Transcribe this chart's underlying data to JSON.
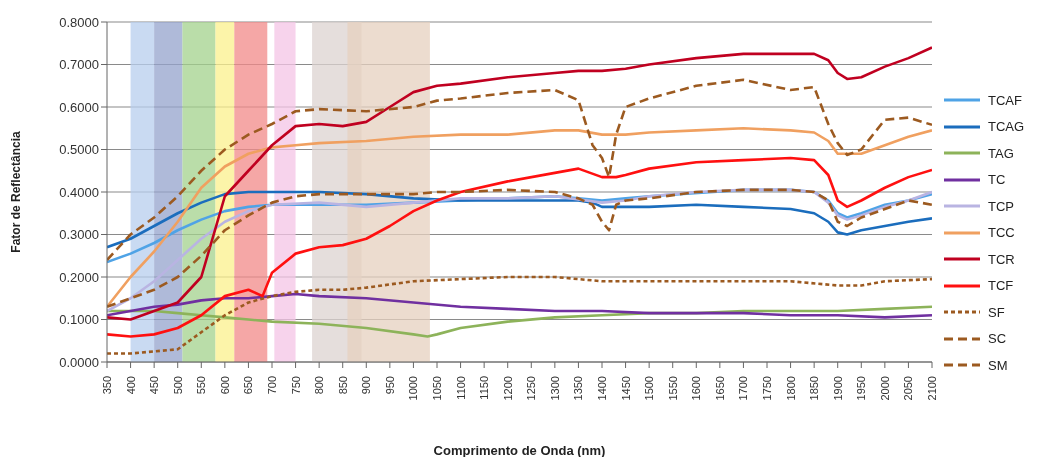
{
  "chart_data": {
    "type": "line",
    "xlabel": "Comprimento de Onda (nm)",
    "ylabel": "Fator de Reflectância",
    "xlim": [
      350,
      2100
    ],
    "xticks": [
      350,
      400,
      450,
      500,
      550,
      600,
      650,
      700,
      750,
      800,
      850,
      900,
      950,
      1000,
      1050,
      1100,
      1150,
      1200,
      1250,
      1300,
      1350,
      1400,
      1450,
      1500,
      1550,
      1600,
      1650,
      1700,
      1750,
      1800,
      1850,
      1900,
      1950,
      2000,
      2050,
      2100
    ],
    "ylim": [
      0,
      0.8
    ],
    "yticks": [
      {
        "value": 0,
        "label": "0.0000"
      },
      {
        "value": 0.1,
        "label": "0.1000"
      },
      {
        "value": 0.2,
        "label": "0.2000"
      },
      {
        "value": 0.3,
        "label": "0.3000"
      },
      {
        "value": 0.4,
        "label": "0.4000"
      },
      {
        "value": 0.5,
        "label": "0.5000"
      },
      {
        "value": 0.6,
        "label": "0.6000"
      },
      {
        "value": 0.7,
        "label": "0.7000"
      },
      {
        "value": 0.8,
        "label": "0.8000"
      }
    ],
    "grid": "y",
    "legend": "right",
    "marker": "none",
    "bands": [
      {
        "axis": "x",
        "from": 400,
        "to": 450,
        "color": "#b7cdee"
      },
      {
        "axis": "x",
        "from": 450,
        "to": 510,
        "color": "#94a3cc"
      },
      {
        "axis": "x",
        "from": 510,
        "to": 580,
        "color": "#a3d18c"
      },
      {
        "axis": "x",
        "from": 580,
        "to": 620,
        "color": "#fbf08c"
      },
      {
        "axis": "x",
        "from": 620,
        "to": 690,
        "color": "#f28a88"
      },
      {
        "axis": "x",
        "from": 705,
        "to": 750,
        "color": "#f4c4e6"
      },
      {
        "axis": "x",
        "from": 785,
        "to": 890,
        "color": "#dcd3d0"
      },
      {
        "axis": "x",
        "from": 860,
        "to": 1035,
        "color": "#e6d0bf"
      }
    ],
    "series": [
      {
        "name": "TCAF",
        "color": "#4fa3e6",
        "line_style": "solid",
        "x": [
          350,
          400,
          450,
          500,
          550,
          600,
          650,
          700,
          800,
          900,
          1000,
          1100,
          1200,
          1300,
          1350,
          1400,
          1450,
          1500,
          1700,
          1800,
          1850,
          1880,
          1900,
          1920,
          1950,
          2000,
          2050,
          2100
        ],
        "values": [
          0.235,
          0.255,
          0.28,
          0.31,
          0.335,
          0.355,
          0.365,
          0.37,
          0.37,
          0.37,
          0.375,
          0.38,
          0.385,
          0.39,
          0.385,
          0.38,
          0.385,
          0.39,
          0.405,
          0.405,
          0.4,
          0.38,
          0.35,
          0.34,
          0.35,
          0.37,
          0.38,
          0.395
        ]
      },
      {
        "name": "TCAG",
        "color": "#1b6dbd",
        "line_style": "solid",
        "x": [
          350,
          400,
          450,
          500,
          550,
          600,
          650,
          700,
          800,
          900,
          1000,
          1100,
          1200,
          1300,
          1350,
          1380,
          1400,
          1450,
          1500,
          1600,
          1700,
          1800,
          1850,
          1880,
          1900,
          1920,
          1950,
          2000,
          2050,
          2100
        ],
        "values": [
          0.27,
          0.29,
          0.32,
          0.35,
          0.375,
          0.395,
          0.4,
          0.4,
          0.4,
          0.395,
          0.385,
          0.38,
          0.38,
          0.38,
          0.38,
          0.375,
          0.365,
          0.365,
          0.365,
          0.37,
          0.365,
          0.36,
          0.35,
          0.33,
          0.305,
          0.3,
          0.31,
          0.32,
          0.33,
          0.338
        ]
      },
      {
        "name": "TAG",
        "color": "#8db35a",
        "line_style": "solid",
        "x": [
          350,
          400,
          450,
          500,
          550,
          600,
          650,
          700,
          800,
          900,
          1000,
          1030,
          1050,
          1100,
          1200,
          1300,
          1400,
          1500,
          1600,
          1700,
          1800,
          1900,
          2000,
          2100
        ],
        "values": [
          0.12,
          0.12,
          0.12,
          0.115,
          0.11,
          0.105,
          0.1,
          0.095,
          0.09,
          0.08,
          0.065,
          0.06,
          0.065,
          0.08,
          0.095,
          0.105,
          0.11,
          0.115,
          0.115,
          0.12,
          0.12,
          0.12,
          0.125,
          0.13
        ]
      },
      {
        "name": "TC",
        "color": "#7030a0",
        "line_style": "solid",
        "x": [
          350,
          400,
          450,
          500,
          550,
          600,
          650,
          700,
          750,
          800,
          900,
          1000,
          1100,
          1200,
          1300,
          1400,
          1500,
          1600,
          1700,
          1800,
          1900,
          2000,
          2100
        ],
        "values": [
          0.11,
          0.12,
          0.13,
          0.135,
          0.145,
          0.15,
          0.15,
          0.155,
          0.16,
          0.155,
          0.15,
          0.14,
          0.13,
          0.125,
          0.12,
          0.12,
          0.115,
          0.115,
          0.115,
          0.11,
          0.11,
          0.105,
          0.11
        ]
      },
      {
        "name": "TCP",
        "color": "#b9b4e2",
        "line_style": "solid",
        "x": [
          350,
          400,
          450,
          500,
          550,
          600,
          650,
          700,
          800,
          900,
          1000,
          1100,
          1200,
          1300,
          1400,
          1450,
          1500,
          1600,
          1700,
          1800,
          1850,
          1880,
          1900,
          1920,
          1950,
          2000,
          2050,
          2100
        ],
        "values": [
          0.12,
          0.15,
          0.19,
          0.24,
          0.29,
          0.33,
          0.355,
          0.37,
          0.375,
          0.365,
          0.375,
          0.385,
          0.385,
          0.39,
          0.375,
          0.38,
          0.39,
          0.4,
          0.405,
          0.405,
          0.4,
          0.375,
          0.345,
          0.335,
          0.345,
          0.365,
          0.38,
          0.4
        ]
      },
      {
        "name": "TCC",
        "color": "#f0a060",
        "line_style": "solid",
        "x": [
          350,
          400,
          450,
          500,
          550,
          600,
          650,
          700,
          750,
          800,
          900,
          1000,
          1100,
          1200,
          1300,
          1350,
          1400,
          1450,
          1500,
          1600,
          1700,
          1800,
          1850,
          1880,
          1900,
          1950,
          2000,
          2050,
          2100
        ],
        "values": [
          0.13,
          0.2,
          0.26,
          0.33,
          0.41,
          0.46,
          0.49,
          0.505,
          0.51,
          0.515,
          0.52,
          0.53,
          0.535,
          0.535,
          0.545,
          0.545,
          0.535,
          0.535,
          0.54,
          0.545,
          0.55,
          0.545,
          0.54,
          0.52,
          0.49,
          0.49,
          0.51,
          0.53,
          0.545
        ]
      },
      {
        "name": "TCR",
        "color": "#c00020",
        "line_style": "solid",
        "x": [
          350,
          400,
          450,
          500,
          550,
          600,
          650,
          700,
          750,
          800,
          850,
          900,
          950,
          1000,
          1050,
          1100,
          1200,
          1300,
          1350,
          1400,
          1450,
          1500,
          1600,
          1700,
          1800,
          1850,
          1880,
          1900,
          1920,
          1950,
          2000,
          2050,
          2100
        ],
        "values": [
          0.105,
          0.1,
          0.12,
          0.14,
          0.2,
          0.39,
          0.45,
          0.51,
          0.555,
          0.56,
          0.555,
          0.565,
          0.6,
          0.635,
          0.65,
          0.655,
          0.67,
          0.68,
          0.685,
          0.685,
          0.69,
          0.7,
          0.715,
          0.725,
          0.725,
          0.725,
          0.71,
          0.68,
          0.666,
          0.67,
          0.695,
          0.715,
          0.74
        ]
      },
      {
        "name": "TCF",
        "color": "#ff1010",
        "line_style": "solid",
        "x": [
          350,
          400,
          450,
          500,
          550,
          600,
          650,
          680,
          700,
          750,
          800,
          850,
          900,
          950,
          1000,
          1050,
          1100,
          1200,
          1300,
          1350,
          1400,
          1430,
          1450,
          1500,
          1600,
          1700,
          1800,
          1850,
          1880,
          1900,
          1920,
          1950,
          2000,
          2050,
          2100
        ],
        "values": [
          0.065,
          0.06,
          0.065,
          0.08,
          0.11,
          0.155,
          0.17,
          0.155,
          0.21,
          0.255,
          0.27,
          0.275,
          0.29,
          0.32,
          0.355,
          0.38,
          0.4,
          0.425,
          0.445,
          0.455,
          0.435,
          0.435,
          0.44,
          0.455,
          0.47,
          0.475,
          0.48,
          0.475,
          0.44,
          0.38,
          0.365,
          0.38,
          0.41,
          0.435,
          0.452
        ]
      },
      {
        "name": "SF",
        "color": "#9c5a20",
        "line_style": "dotted",
        "x": [
          350,
          400,
          450,
          500,
          550,
          600,
          650,
          700,
          750,
          800,
          850,
          900,
          1000,
          1100,
          1200,
          1300,
          1400,
          1500,
          1600,
          1700,
          1800,
          1900,
          1950,
          2000,
          2100
        ],
        "values": [
          0.02,
          0.02,
          0.025,
          0.03,
          0.07,
          0.11,
          0.14,
          0.155,
          0.165,
          0.17,
          0.17,
          0.175,
          0.19,
          0.195,
          0.2,
          0.2,
          0.19,
          0.19,
          0.19,
          0.19,
          0.19,
          0.18,
          0.18,
          0.19,
          0.195
        ]
      },
      {
        "name": "SC",
        "color": "#9c5a20",
        "line_style": "dashed",
        "x": [
          350,
          400,
          450,
          500,
          550,
          600,
          650,
          700,
          750,
          800,
          900,
          1000,
          1050,
          1100,
          1200,
          1300,
          1350,
          1380,
          1400,
          1415,
          1430,
          1450,
          1500,
          1600,
          1700,
          1800,
          1850,
          1880,
          1900,
          1920,
          1950,
          2000,
          2050,
          2100
        ],
        "values": [
          0.24,
          0.3,
          0.34,
          0.39,
          0.45,
          0.5,
          0.535,
          0.56,
          0.59,
          0.595,
          0.59,
          0.6,
          0.615,
          0.62,
          0.633,
          0.64,
          0.616,
          0.51,
          0.48,
          0.435,
          0.535,
          0.6,
          0.62,
          0.65,
          0.664,
          0.64,
          0.647,
          0.56,
          0.515,
          0.487,
          0.5,
          0.57,
          0.575,
          0.558
        ]
      },
      {
        "name": "SM",
        "color": "#9c5a20",
        "line_style": "dashed",
        "x": [
          350,
          400,
          450,
          500,
          550,
          600,
          650,
          700,
          750,
          800,
          900,
          1000,
          1050,
          1100,
          1200,
          1300,
          1350,
          1380,
          1400,
          1415,
          1430,
          1450,
          1500,
          1600,
          1700,
          1800,
          1850,
          1880,
          1900,
          1920,
          1950,
          2000,
          2050,
          2100
        ],
        "values": [
          0.13,
          0.15,
          0.17,
          0.2,
          0.25,
          0.31,
          0.345,
          0.375,
          0.39,
          0.395,
          0.395,
          0.395,
          0.4,
          0.4,
          0.405,
          0.4,
          0.385,
          0.37,
          0.33,
          0.31,
          0.37,
          0.38,
          0.385,
          0.4,
          0.405,
          0.405,
          0.4,
          0.38,
          0.33,
          0.32,
          0.34,
          0.36,
          0.38,
          0.37
        ]
      }
    ]
  }
}
